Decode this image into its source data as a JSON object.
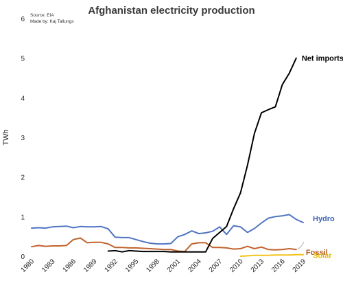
{
  "chart_data": {
    "type": "line",
    "title": "Afghanistan electricity production",
    "notes": [
      "Source: EIA",
      "Made by: Kaj Tallungs"
    ],
    "ylabel": "TWh",
    "xlabel": "",
    "xlim": [
      1980,
      2019
    ],
    "ylim": [
      0,
      6
    ],
    "x_ticks": [
      1980,
      1983,
      1986,
      1989,
      1992,
      1995,
      1998,
      2001,
      2004,
      2007,
      2010,
      2013,
      2016,
      2019
    ],
    "y_ticks": [
      0,
      1,
      2,
      3,
      4,
      5,
      6
    ],
    "grid": false,
    "series": [
      {
        "name": "Hydro",
        "color": "#4f74c2",
        "points": [
          [
            1980,
            0.71
          ],
          [
            1981,
            0.72
          ],
          [
            1982,
            0.71
          ],
          [
            1983,
            0.74
          ],
          [
            1984,
            0.75
          ],
          [
            1985,
            0.76
          ],
          [
            1986,
            0.72
          ],
          [
            1987,
            0.75
          ],
          [
            1988,
            0.74
          ],
          [
            1989,
            0.74
          ],
          [
            1990,
            0.75
          ],
          [
            1991,
            0.69
          ],
          [
            1992,
            0.48
          ],
          [
            1993,
            0.47
          ],
          [
            1994,
            0.47
          ],
          [
            1995,
            0.42
          ],
          [
            1996,
            0.37
          ],
          [
            1997,
            0.33
          ],
          [
            1998,
            0.31
          ],
          [
            1999,
            0.31
          ],
          [
            2000,
            0.32
          ],
          [
            2001,
            0.49
          ],
          [
            2002,
            0.55
          ],
          [
            2003,
            0.64
          ],
          [
            2004,
            0.57
          ],
          [
            2005,
            0.59
          ],
          [
            2006,
            0.63
          ],
          [
            2007,
            0.74
          ],
          [
            2008,
            0.55
          ],
          [
            2009,
            0.77
          ],
          [
            2010,
            0.74
          ],
          [
            2011,
            0.6
          ],
          [
            2012,
            0.7
          ],
          [
            2013,
            0.84
          ],
          [
            2014,
            0.96
          ],
          [
            2015,
            1.0
          ],
          [
            2016,
            1.02
          ],
          [
            2017,
            1.05
          ],
          [
            2018,
            0.93
          ],
          [
            2019,
            0.85
          ]
        ]
      },
      {
        "name": "Fossil",
        "color": "#c0622d",
        "points": [
          [
            1980,
            0.24
          ],
          [
            1981,
            0.27
          ],
          [
            1982,
            0.25
          ],
          [
            1983,
            0.26
          ],
          [
            1984,
            0.26
          ],
          [
            1985,
            0.27
          ],
          [
            1986,
            0.42
          ],
          [
            1987,
            0.46
          ],
          [
            1988,
            0.34
          ],
          [
            1989,
            0.35
          ],
          [
            1990,
            0.35
          ],
          [
            1991,
            0.31
          ],
          [
            1992,
            0.22
          ],
          [
            1993,
            0.22
          ],
          [
            1994,
            0.21
          ],
          [
            1995,
            0.21
          ],
          [
            1996,
            0.2
          ],
          [
            1997,
            0.19
          ],
          [
            1998,
            0.18
          ],
          [
            1999,
            0.17
          ],
          [
            2000,
            0.17
          ],
          [
            2001,
            0.13
          ],
          [
            2002,
            0.12
          ],
          [
            2003,
            0.31
          ],
          [
            2004,
            0.34
          ],
          [
            2005,
            0.34
          ],
          [
            2006,
            0.22
          ],
          [
            2007,
            0.22
          ],
          [
            2008,
            0.21
          ],
          [
            2009,
            0.18
          ],
          [
            2010,
            0.19
          ],
          [
            2011,
            0.25
          ],
          [
            2012,
            0.19
          ],
          [
            2013,
            0.23
          ],
          [
            2014,
            0.17
          ],
          [
            2015,
            0.16
          ],
          [
            2016,
            0.17
          ],
          [
            2017,
            0.19
          ],
          [
            2018,
            0.17
          ]
        ]
      },
      {
        "name": "Net imports",
        "color": "#000000",
        "points": [
          [
            1991,
            0.13
          ],
          [
            1992,
            0.14
          ],
          [
            1993,
            0.11
          ],
          [
            1994,
            0.14
          ],
          [
            1995,
            0.13
          ],
          [
            1996,
            0.12
          ],
          [
            1997,
            0.12
          ],
          [
            1998,
            0.12
          ],
          [
            1999,
            0.12
          ],
          [
            2000,
            0.11
          ],
          [
            2001,
            0.11
          ],
          [
            2002,
            0.11
          ],
          [
            2003,
            0.11
          ],
          [
            2004,
            0.11
          ],
          [
            2005,
            0.11
          ],
          [
            2006,
            0.45
          ],
          [
            2007,
            0.6
          ],
          [
            2008,
            0.75
          ],
          [
            2009,
            1.2
          ],
          [
            2010,
            1.6
          ],
          [
            2011,
            2.3
          ],
          [
            2012,
            3.1
          ],
          [
            2013,
            3.62
          ],
          [
            2014,
            3.7
          ],
          [
            2015,
            3.77
          ],
          [
            2016,
            4.33
          ],
          [
            2017,
            4.62
          ],
          [
            2018,
            5.0
          ]
        ]
      },
      {
        "name": "Solar",
        "color": "#f2c318",
        "points": [
          [
            2010,
            0.0
          ],
          [
            2011,
            0.01
          ],
          [
            2012,
            0.02
          ],
          [
            2013,
            0.02
          ],
          [
            2014,
            0.02
          ],
          [
            2015,
            0.03
          ],
          [
            2016,
            0.03
          ],
          [
            2017,
            0.03
          ],
          [
            2018,
            0.04
          ],
          [
            2019,
            0.04
          ]
        ]
      }
    ]
  }
}
